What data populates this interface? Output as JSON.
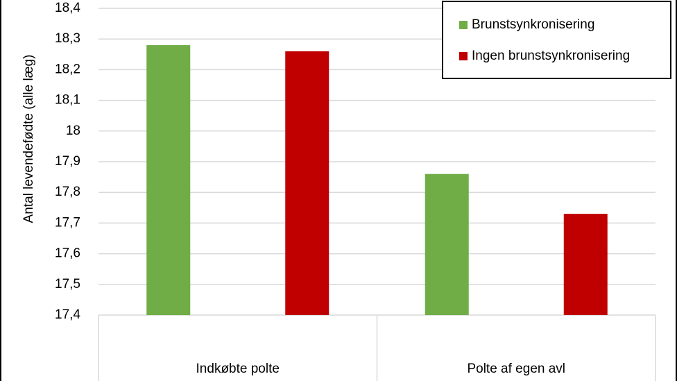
{
  "chart_data": {
    "type": "bar",
    "y_label": "Antal levendefødte (alle læg)",
    "categories": [
      "Indkøbte polte",
      "Polte af egen avl"
    ],
    "series": [
      {
        "name": "Brunstsynkronisering",
        "color": "#70ad47",
        "values": [
          18.28,
          17.86
        ]
      },
      {
        "name": "Ingen brunstsynkronisering",
        "color": "#c00000",
        "values": [
          18.26,
          17.73
        ]
      }
    ],
    "ylim": [
      17.4,
      18.4
    ],
    "yticks": [
      {
        "value": 17.4,
        "label": "17,4"
      },
      {
        "value": 17.5,
        "label": "17,5"
      },
      {
        "value": 17.6,
        "label": "17,6"
      },
      {
        "value": 17.7,
        "label": "17,7"
      },
      {
        "value": 17.8,
        "label": "17,8"
      },
      {
        "value": 17.9,
        "label": "17,9"
      },
      18,
      {
        "value": 18.1,
        "label": "18,1"
      },
      {
        "value": 18.2,
        "label": "18,2"
      },
      {
        "value": 18.3,
        "label": "18,3"
      },
      {
        "value": 18.4,
        "label": "18,4"
      }
    ],
    "grid": true,
    "legend": "top-right"
  }
}
